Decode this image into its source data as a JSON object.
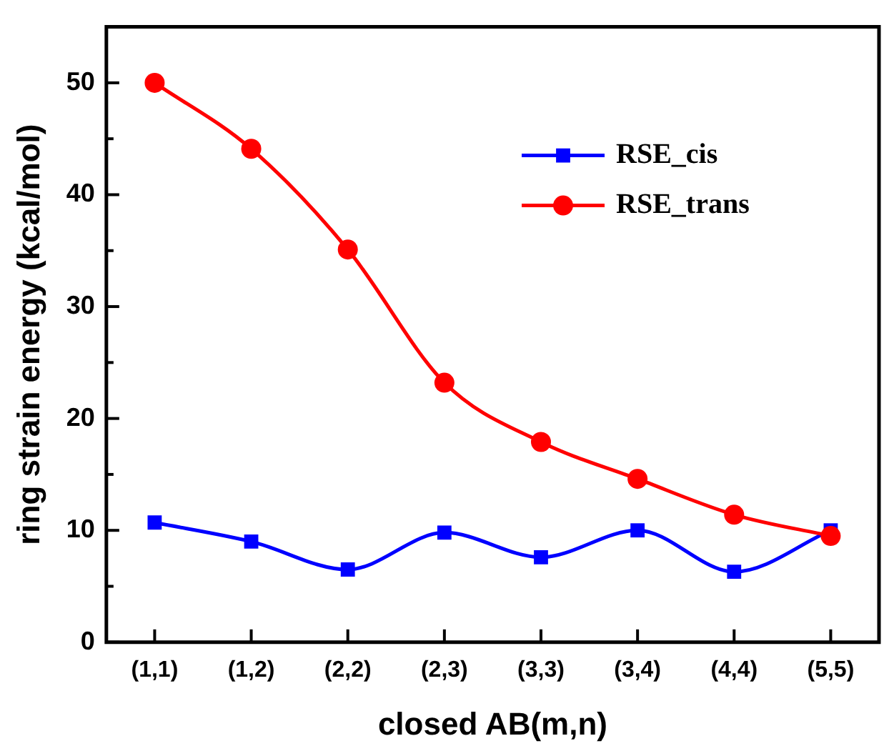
{
  "chart_data": {
    "type": "line",
    "xlabel": "closed AB(m,n)",
    "ylabel": "ring strain energy (kcal/mol)",
    "categories": [
      "(1,1)",
      "(1,2)",
      "(2,2)",
      "(2,3)",
      "(3,3)",
      "(3,4)",
      "(4,4)",
      "(5,5)"
    ],
    "series": [
      {
        "name": "RSE_cis",
        "color": "#0000ff",
        "marker": "square",
        "values": [
          10.7,
          9.0,
          6.5,
          9.8,
          7.6,
          10.0,
          6.3,
          10.0
        ]
      },
      {
        "name": "RSE_trans",
        "color": "#ff0000",
        "marker": "circle",
        "values": [
          50.0,
          44.1,
          35.1,
          23.2,
          17.9,
          14.6,
          11.4,
          9.5
        ]
      }
    ],
    "ylim": [
      0,
      55
    ],
    "yticks": [
      0,
      10,
      20,
      30,
      40,
      50
    ],
    "grid": false,
    "legend": "top right",
    "line_style": "solid"
  }
}
